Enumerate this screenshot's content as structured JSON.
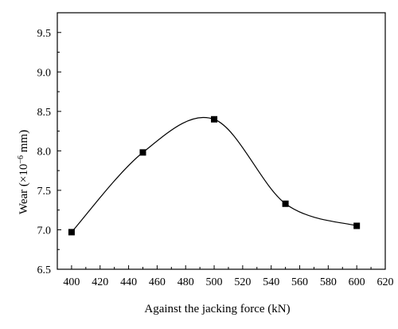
{
  "chart_data": {
    "type": "line",
    "x": [
      400,
      450,
      500,
      550,
      600
    ],
    "y": [
      6.97,
      7.98,
      8.4,
      7.33,
      7.05
    ],
    "xlabel": "Against the jacking force (kN)",
    "ylabel": {
      "prefix": "Wear (×10",
      "superscript": "−6",
      "suffix": " mm)"
    },
    "xlim": [
      390,
      620
    ],
    "ylim": [
      6.5,
      9.75
    ],
    "xticks": [
      400,
      420,
      440,
      460,
      480,
      500,
      520,
      540,
      560,
      580,
      600,
      620
    ],
    "yticks": [
      "6.5",
      "7.0",
      "7.5",
      "8.0",
      "8.5",
      "9.0",
      "9.5"
    ],
    "series_color": "#000000",
    "marker": "square",
    "line_style": "smooth",
    "grid": false,
    "legend": "none"
  }
}
